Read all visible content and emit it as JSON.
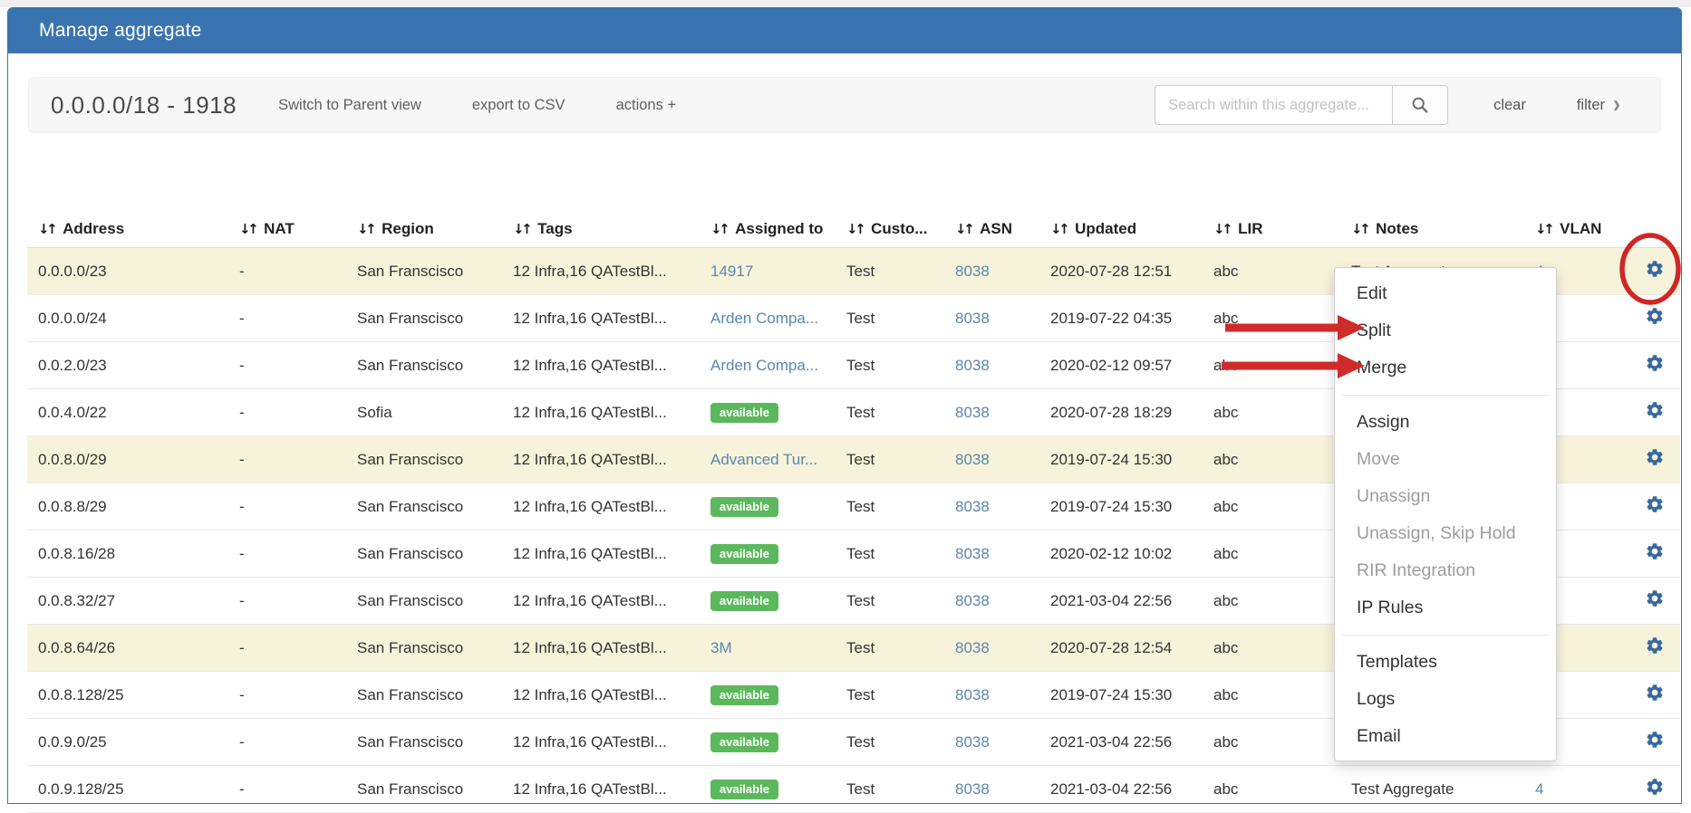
{
  "panel": {
    "title": "Manage aggregate"
  },
  "toolbar": {
    "aggregate_label": "0.0.0.0/18 - 1918",
    "switch_view_label": "Switch to Parent view",
    "export_label": "export to CSV",
    "actions_label": "actions +",
    "search_placeholder": "Search within this aggregate...",
    "search_icon": "magnifier",
    "clear_label": "clear",
    "filter_label": "filter",
    "filter_chevron": "›"
  },
  "table": {
    "sort_icon": "↓↑",
    "columns": [
      "Address",
      "NAT",
      "Region",
      "Tags",
      "Assigned to",
      "Custo...",
      "ASN",
      "Updated",
      "LIR",
      "Notes",
      "VLAN"
    ],
    "rows": [
      {
        "address": "0.0.0.0/23",
        "nat": "-",
        "region": "San Franscisco",
        "tags": "12 Infra,16 QATestBl...",
        "assigned": {
          "kind": "link",
          "text": "14917"
        },
        "customer": "Test",
        "asn": "8038",
        "updated": "2020-07-28 12:51",
        "lir": "abc",
        "notes": "Test Aggregate",
        "vlan": "4",
        "highlighted": true
      },
      {
        "address": "0.0.0.0/24",
        "nat": "-",
        "region": "San Franscisco",
        "tags": "12 Infra,16 QATestBl...",
        "assigned": {
          "kind": "link",
          "text": "Arden Compa..."
        },
        "customer": "Test",
        "asn": "8038",
        "updated": "2019-07-22 04:35",
        "lir": "abc",
        "notes": "",
        "vlan": "",
        "highlighted": false
      },
      {
        "address": "0.0.2.0/23",
        "nat": "-",
        "region": "San Franscisco",
        "tags": "12 Infra,16 QATestBl...",
        "assigned": {
          "kind": "link",
          "text": "Arden Compa..."
        },
        "customer": "Test",
        "asn": "8038",
        "updated": "2020-02-12 09:57",
        "lir": "abc",
        "notes": "",
        "vlan": "",
        "highlighted": false
      },
      {
        "address": "0.0.4.0/22",
        "nat": "-",
        "region": "Sofia",
        "tags": "12 Infra,16 QATestBl...",
        "assigned": {
          "kind": "badge",
          "text": "available"
        },
        "customer": "Test",
        "asn": "8038",
        "updated": "2020-07-28 18:29",
        "lir": "abc",
        "notes": "",
        "vlan": "",
        "highlighted": false
      },
      {
        "address": "0.0.8.0/29",
        "nat": "-",
        "region": "San Franscisco",
        "tags": "12 Infra,16 QATestBl...",
        "assigned": {
          "kind": "link",
          "text": "Advanced Tur..."
        },
        "customer": "Test",
        "asn": "8038",
        "updated": "2019-07-24 15:30",
        "lir": "abc",
        "notes": "",
        "vlan": "",
        "highlighted": true
      },
      {
        "address": "0.0.8.8/29",
        "nat": "-",
        "region": "San Franscisco",
        "tags": "12 Infra,16 QATestBl...",
        "assigned": {
          "kind": "badge",
          "text": "available"
        },
        "customer": "Test",
        "asn": "8038",
        "updated": "2019-07-24 15:30",
        "lir": "abc",
        "notes": "",
        "vlan": "",
        "highlighted": false
      },
      {
        "address": "0.0.8.16/28",
        "nat": "-",
        "region": "San Franscisco",
        "tags": "12 Infra,16 QATestBl...",
        "assigned": {
          "kind": "badge",
          "text": "available"
        },
        "customer": "Test",
        "asn": "8038",
        "updated": "2020-02-12 10:02",
        "lir": "abc",
        "notes": "",
        "vlan": "",
        "highlighted": false
      },
      {
        "address": "0.0.8.32/27",
        "nat": "-",
        "region": "San Franscisco",
        "tags": "12 Infra,16 QATestBl...",
        "assigned": {
          "kind": "badge",
          "text": "available"
        },
        "customer": "Test",
        "asn": "8038",
        "updated": "2021-03-04 22:56",
        "lir": "abc",
        "notes": "",
        "vlan": "",
        "highlighted": false
      },
      {
        "address": "0.0.8.64/26",
        "nat": "-",
        "region": "San Franscisco",
        "tags": "12 Infra,16 QATestBl...",
        "assigned": {
          "kind": "link",
          "text": "3M"
        },
        "customer": "Test",
        "asn": "8038",
        "updated": "2020-07-28 12:54",
        "lir": "abc",
        "notes": "",
        "vlan": "",
        "highlighted": true
      },
      {
        "address": "0.0.8.128/25",
        "nat": "-",
        "region": "San Franscisco",
        "tags": "12 Infra,16 QATestBl...",
        "assigned": {
          "kind": "badge",
          "text": "available"
        },
        "customer": "Test",
        "asn": "8038",
        "updated": "2019-07-24 15:30",
        "lir": "abc",
        "notes": "",
        "vlan": "",
        "highlighted": false
      },
      {
        "address": "0.0.9.0/25",
        "nat": "-",
        "region": "San Franscisco",
        "tags": "12 Infra,16 QATestBl...",
        "assigned": {
          "kind": "badge",
          "text": "available"
        },
        "customer": "Test",
        "asn": "8038",
        "updated": "2021-03-04 22:56",
        "lir": "abc",
        "notes": "",
        "vlan": "",
        "highlighted": false
      },
      {
        "address": "0.0.9.128/25",
        "nat": "-",
        "region": "San Franscisco",
        "tags": "12 Infra,16 QATestBl...",
        "assigned": {
          "kind": "badge",
          "text": "available"
        },
        "customer": "Test",
        "asn": "8038",
        "updated": "2021-03-04 22:56",
        "lir": "abc",
        "notes": "Test Aggregate",
        "vlan": "4",
        "highlighted": false
      }
    ]
  },
  "context_menu": {
    "groups": [
      {
        "items": [
          {
            "label": "Edit",
            "enabled": true
          },
          {
            "label": "Split",
            "enabled": true
          },
          {
            "label": "Merge",
            "enabled": true
          }
        ]
      },
      {
        "items": [
          {
            "label": "Assign",
            "enabled": true
          },
          {
            "label": "Move",
            "enabled": false
          },
          {
            "label": "Unassign",
            "enabled": false
          },
          {
            "label": "Unassign, Skip Hold",
            "enabled": false
          },
          {
            "label": "RIR Integration",
            "enabled": false
          },
          {
            "label": "IP Rules",
            "enabled": true
          }
        ]
      },
      {
        "items": [
          {
            "label": "Templates",
            "enabled": true
          },
          {
            "label": "Logs",
            "enabled": true
          },
          {
            "label": "Email",
            "enabled": true
          }
        ]
      }
    ]
  },
  "annotations": {
    "circle_target": "row-1 gear",
    "arrow_targets": [
      "Split",
      "Merge"
    ]
  },
  "colors": {
    "header_bar": "#3a74b0",
    "row_highlight": "#f7f3da",
    "badge_green": "#5cb85c",
    "link_blue": "#5b87ae",
    "gear_blue": "#38689e",
    "annotation_red": "#cf2626"
  }
}
